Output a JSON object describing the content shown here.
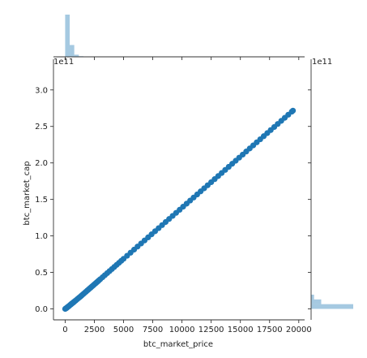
{
  "chart_data": {
    "type": "scatter",
    "variant": "jointplot",
    "xlabel": "btc_market_price",
    "ylabel": "btc_market_cap",
    "xlim": [
      -1000,
      20500
    ],
    "ylim": [
      -0.15,
      3.42
    ],
    "y_offset_text": "1e11",
    "y_marg_offset_text": "1e11",
    "x_ticks": [
      0,
      2500,
      5000,
      7500,
      10000,
      12500,
      15000,
      17500,
      20000
    ],
    "x_tick_labels": [
      "0",
      "2500",
      "5000",
      "7500",
      "10000",
      "12500",
      "15000",
      "17500",
      "20000"
    ],
    "y_ticks": [
      0.0,
      0.5,
      1.0,
      1.5,
      2.0,
      2.5,
      3.0
    ],
    "y_tick_labels": [
      "0.0",
      "0.5",
      "1.0",
      "1.5",
      "2.0",
      "2.5",
      "3.0"
    ],
    "color": "#1f77b4",
    "hist_color": "#1f77b4",
    "x_hist": [
      {
        "x0": 0,
        "x1": 390,
        "count": 1000
      },
      {
        "x0": 390,
        "x1": 780,
        "count": 280
      },
      {
        "x0": 780,
        "x1": 1170,
        "count": 50
      },
      {
        "x0": 1170,
        "x1": 1560,
        "count": 15
      },
      {
        "x0": 1560,
        "x1": 1950,
        "count": 8
      },
      {
        "x0": 1950,
        "x1": 2340,
        "count": 6
      },
      {
        "x0": 2340,
        "x1": 2730,
        "count": 8
      },
      {
        "x0": 2730,
        "x1": 3120,
        "count": 5
      }
    ],
    "y_hist": [
      {
        "y0": 0.0,
        "y1": 0.065,
        "count": 1000
      },
      {
        "y0": 0.065,
        "y1": 0.13,
        "count": 240
      },
      {
        "y0": 0.13,
        "y1": 0.195,
        "count": 70
      }
    ],
    "points": [
      [
        0,
        0.0
      ],
      [
        40,
        0.004
      ],
      [
        80,
        0.008
      ],
      [
        120,
        0.013
      ],
      [
        160,
        0.018
      ],
      [
        200,
        0.024
      ],
      [
        250,
        0.03
      ],
      [
        300,
        0.036
      ],
      [
        350,
        0.042
      ],
      [
        400,
        0.05
      ],
      [
        450,
        0.056
      ],
      [
        500,
        0.062
      ],
      [
        550,
        0.07
      ],
      [
        600,
        0.076
      ],
      [
        650,
        0.082
      ],
      [
        700,
        0.088
      ],
      [
        750,
        0.095
      ],
      [
        800,
        0.102
      ],
      [
        900,
        0.115
      ],
      [
        1000,
        0.128
      ],
      [
        1100,
        0.142
      ],
      [
        1200,
        0.155
      ],
      [
        1300,
        0.168
      ],
      [
        1400,
        0.182
      ],
      [
        1500,
        0.196
      ],
      [
        1600,
        0.21
      ],
      [
        1700,
        0.224
      ],
      [
        1800,
        0.238
      ],
      [
        1900,
        0.252
      ],
      [
        2000,
        0.266
      ],
      [
        2100,
        0.28
      ],
      [
        2200,
        0.294
      ],
      [
        2300,
        0.308
      ],
      [
        2400,
        0.322
      ],
      [
        2500,
        0.336
      ],
      [
        2600,
        0.35
      ],
      [
        2700,
        0.364
      ],
      [
        2800,
        0.378
      ],
      [
        2900,
        0.392
      ],
      [
        3000,
        0.406
      ],
      [
        3200,
        0.434
      ],
      [
        3400,
        0.462
      ],
      [
        3600,
        0.49
      ],
      [
        3800,
        0.518
      ],
      [
        4000,
        0.546
      ],
      [
        4200,
        0.574
      ],
      [
        4400,
        0.602
      ],
      [
        4600,
        0.63
      ],
      [
        4800,
        0.658
      ],
      [
        5000,
        0.686
      ],
      [
        5300,
        0.728
      ],
      [
        5600,
        0.77
      ],
      [
        5900,
        0.812
      ],
      [
        6200,
        0.854
      ],
      [
        6500,
        0.896
      ],
      [
        6800,
        0.938
      ],
      [
        7100,
        0.98
      ],
      [
        7400,
        1.022
      ],
      [
        7700,
        1.064
      ],
      [
        8000,
        1.106
      ],
      [
        8300,
        1.148
      ],
      [
        8600,
        1.19
      ],
      [
        8900,
        1.232
      ],
      [
        9200,
        1.274
      ],
      [
        9500,
        1.316
      ],
      [
        9800,
        1.358
      ],
      [
        10100,
        1.4
      ],
      [
        10400,
        1.442
      ],
      [
        10700,
        1.484
      ],
      [
        11000,
        1.526
      ],
      [
        11300,
        1.568
      ],
      [
        11600,
        1.61
      ],
      [
        11900,
        1.652
      ],
      [
        12200,
        1.694
      ],
      [
        12500,
        1.736
      ],
      [
        12800,
        1.778
      ],
      [
        13100,
        1.82
      ],
      [
        13400,
        1.862
      ],
      [
        13700,
        1.904
      ],
      [
        14000,
        1.946
      ],
      [
        14300,
        1.988
      ],
      [
        14600,
        2.03
      ],
      [
        14900,
        2.072
      ],
      [
        15200,
        2.114
      ],
      [
        15500,
        2.156
      ],
      [
        15800,
        2.198
      ],
      [
        16100,
        2.24
      ],
      [
        16400,
        2.282
      ],
      [
        16700,
        2.324
      ],
      [
        17000,
        2.366
      ],
      [
        17300,
        2.408
      ],
      [
        17600,
        2.45
      ],
      [
        17900,
        2.492
      ],
      [
        18200,
        2.534
      ],
      [
        18500,
        2.576
      ],
      [
        18800,
        2.618
      ],
      [
        19100,
        2.66
      ],
      [
        19400,
        2.702
      ],
      [
        19500,
        2.716
      ]
    ]
  }
}
